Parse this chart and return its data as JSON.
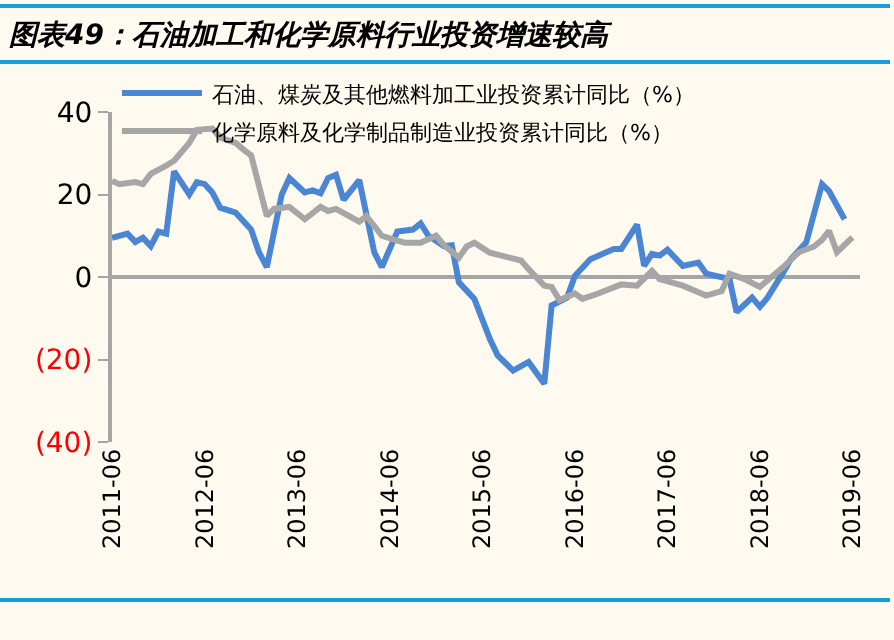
{
  "chart_data": {
    "type": "line",
    "title": "图表49：石油加工和化学原料行业投资增速较高",
    "series": [
      {
        "name": "石油、煤炭及其他燃料加工业投资累计同比（%）",
        "color": "#4a86d4",
        "x": [
          "2011-06",
          "2011-08",
          "2011-09",
          "2011-10",
          "2011-11",
          "2011-12",
          "2012-01",
          "2012-02",
          "2012-04",
          "2012-05",
          "2012-06",
          "2012-07",
          "2012-08",
          "2012-10",
          "2012-12",
          "2013-01",
          "2013-02",
          "2013-04",
          "2013-05",
          "2013-07",
          "2013-08",
          "2013-09",
          "2013-10",
          "2013-11",
          "2013-12",
          "2014-02",
          "2014-04",
          "2014-05",
          "2014-07",
          "2014-09",
          "2014-10",
          "2014-11",
          "2015-01",
          "2015-02",
          "2015-03",
          "2015-05",
          "2015-07",
          "2015-08",
          "2015-10",
          "2015-12",
          "2016-02",
          "2016-03",
          "2016-05",
          "2016-06",
          "2016-08",
          "2016-11",
          "2016-12",
          "2017-02",
          "2017-03",
          "2017-04",
          "2017-05",
          "2017-06",
          "2017-08",
          "2017-10",
          "2017-11",
          "2018-02",
          "2018-03",
          "2018-05",
          "2018-06",
          "2018-07",
          "2018-09",
          "2018-10",
          "2018-12",
          "2019-02",
          "2019-03",
          "2019-05"
        ],
        "values": [
          9.5,
          10.5,
          8.5,
          9.5,
          7.5,
          11,
          10.5,
          25.6,
          20,
          23,
          22.5,
          20.5,
          16.8,
          15.6,
          11.5,
          6,
          2.4,
          20,
          24,
          20.5,
          21,
          20.3,
          24,
          24.8,
          18.7,
          23.5,
          6,
          2.4,
          11,
          11.5,
          13,
          10,
          7.5,
          7.7,
          -1.3,
          -5.3,
          -15,
          -19,
          -22.7,
          -20.6,
          -25.9,
          -6.9,
          -5,
          0.3,
          4.3,
          6.8,
          6.8,
          12.7,
          2.7,
          5.6,
          5.2,
          6.6,
          2.7,
          3.5,
          0.8,
          -0.5,
          -8.5,
          -5,
          -7.2,
          -5,
          1.1,
          4.3,
          8.4,
          22.5,
          20.8,
          14
        ]
      },
      {
        "name": "化学原料及化学制品制造业投资累计同比（%）",
        "color": "#a6a6a6",
        "x": [
          "2011-06",
          "2011-07",
          "2011-09",
          "2011-10",
          "2011-11",
          "2012-01",
          "2012-02",
          "2012-04",
          "2012-05",
          "2012-07",
          "2012-08",
          "2012-10",
          "2012-11",
          "2012-12",
          "2013-02",
          "2013-03",
          "2013-05",
          "2013-07",
          "2013-09",
          "2013-10",
          "2013-11",
          "2014-02",
          "2014-03",
          "2014-05",
          "2014-07",
          "2014-08",
          "2014-10",
          "2014-12",
          "2015-01",
          "2015-03",
          "2015-04",
          "2015-05",
          "2015-07",
          "2015-11",
          "2015-12",
          "2016-02",
          "2016-03",
          "2016-04",
          "2016-06",
          "2016-07",
          "2016-09",
          "2016-12",
          "2017-02",
          "2017-04",
          "2017-05",
          "2017-08",
          "2017-11",
          "2018-01",
          "2018-02",
          "2018-04",
          "2018-06",
          "2018-08",
          "2018-09",
          "2018-11",
          "2019-01",
          "2019-02",
          "2019-03",
          "2019-04",
          "2019-06"
        ],
        "values": [
          23.3,
          22.5,
          23,
          22.5,
          25,
          27,
          28.2,
          32.5,
          35.7,
          36,
          33.8,
          32.5,
          30.9,
          29.5,
          14.8,
          16.5,
          17,
          14,
          17,
          16,
          16.5,
          13.4,
          14.8,
          10,
          8.8,
          8.3,
          8.3,
          10,
          7.7,
          4.7,
          7.4,
          8.3,
          5.9,
          4,
          1.9,
          -2.1,
          -2.4,
          -5.6,
          -4,
          -5.3,
          -4,
          -1.8,
          -2.1,
          1.5,
          -0.5,
          -2.1,
          -4.5,
          -3.4,
          0.8,
          -0.5,
          -2.4,
          0.8,
          2.4,
          6,
          7.4,
          9,
          11.2,
          6,
          9.6
        ]
      }
    ],
    "xlim": [
      "2011-06",
      "2019-07"
    ],
    "xticks": [
      {
        "value": "2011-06",
        "label": "2011-06"
      },
      {
        "value": "2012-06",
        "label": "2012-06"
      },
      {
        "value": "2013-06",
        "label": "2013-06"
      },
      {
        "value": "2014-06",
        "label": "2014-06"
      },
      {
        "value": "2015-06",
        "label": "2015-06"
      },
      {
        "value": "2016-06",
        "label": "2016-06"
      },
      {
        "value": "2017-06",
        "label": "2017-06"
      },
      {
        "value": "2018-06",
        "label": "2018-06"
      },
      {
        "value": "2019-06",
        "label": "2019-06"
      }
    ],
    "ylim": [
      -40,
      40
    ],
    "yticks": [
      40,
      20,
      0,
      {
        "value": -20,
        "label": "(20)"
      },
      {
        "value": -40,
        "label": "(40)"
      }
    ],
    "ref_lines": [
      {
        "axis": "y",
        "value": 0,
        "color": "#a6a6a6"
      }
    ],
    "legend": "top left",
    "grid": false,
    "marker": "none",
    "line_style": "solid"
  }
}
